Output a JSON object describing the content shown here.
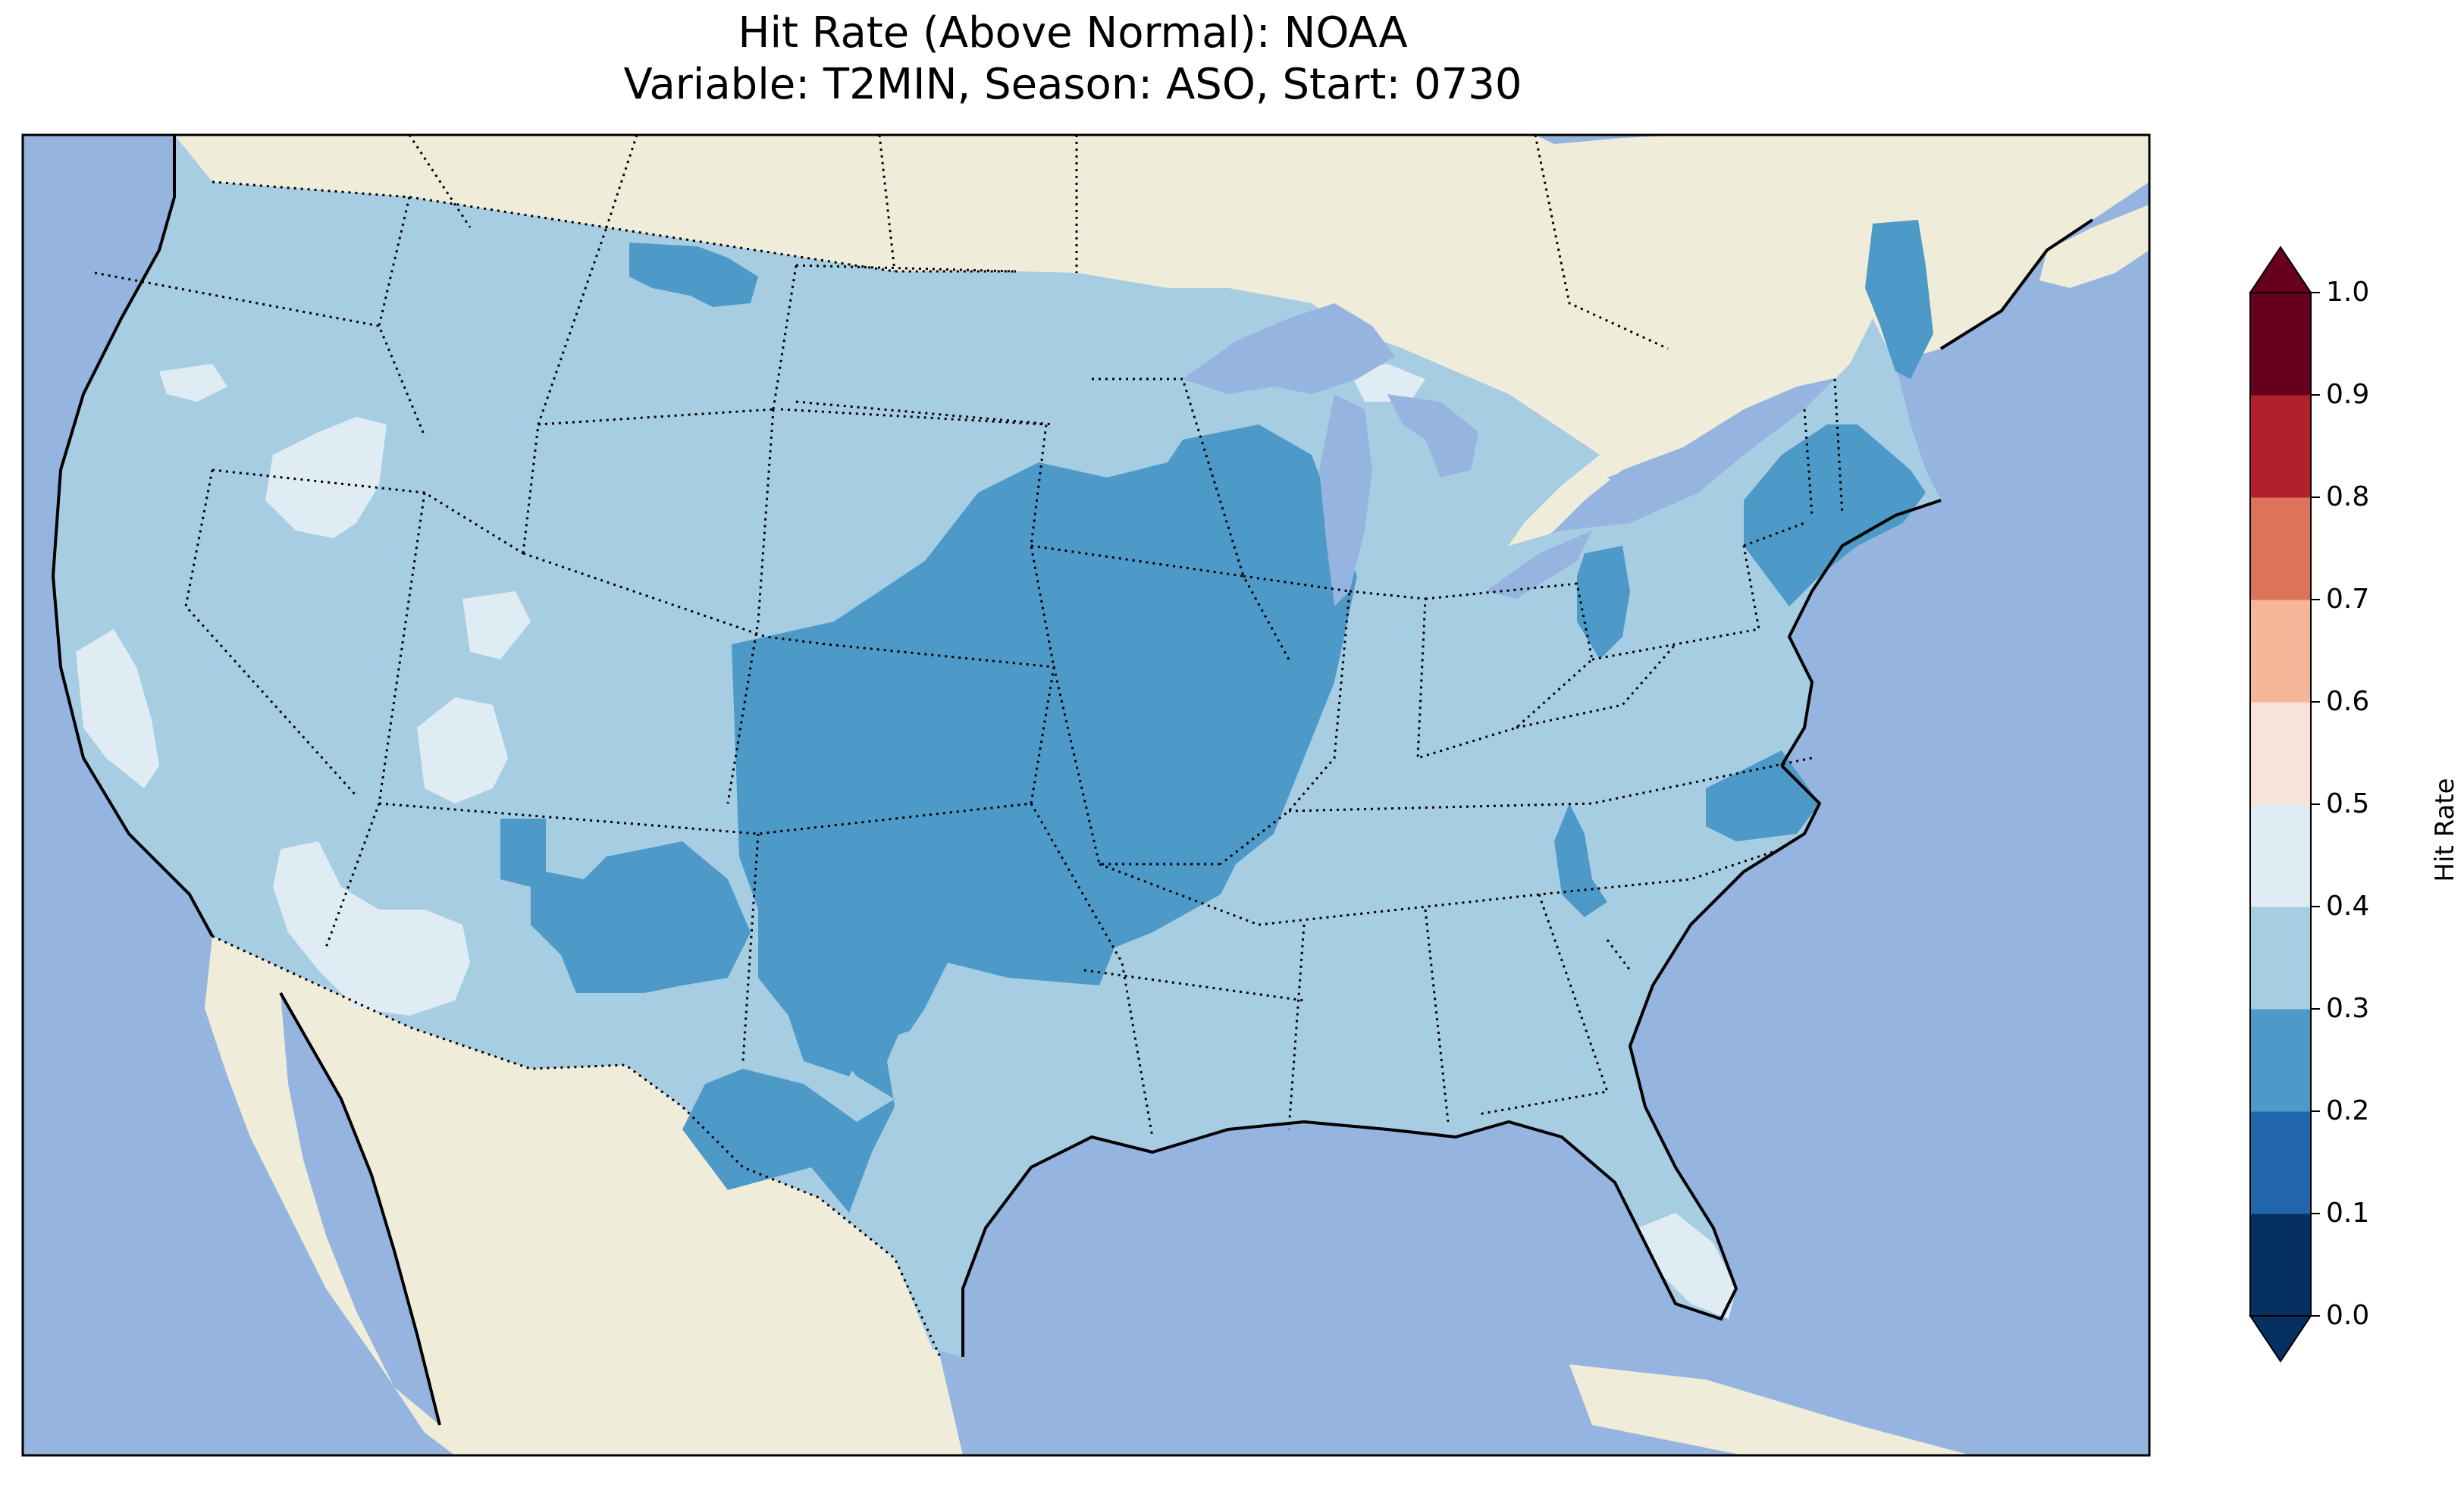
{
  "title": {
    "line1": "Hit Rate (Above Normal): NOAA",
    "line2": "Variable: T2MIN, Season: ASO, Start: 0730"
  },
  "colors": {
    "ocean": "#96b4e0",
    "land": "#efedda",
    "bin_0_1": "#053061",
    "bin_1_2": "#2166ac",
    "bin_2_3": "#4d99c8",
    "bin_3_4": "#a7cde3",
    "bin_4_5": "#e0ecf3",
    "bin_5_6": "#f8e3d8",
    "bin_6_7": "#f4b598",
    "bin_7_8": "#dd7459",
    "bin_8_9": "#b3202d",
    "bin_9_10": "#67001f"
  },
  "colorbar": {
    "label": "Hit Rate",
    "ticks": [
      "0.0",
      "0.1",
      "0.2",
      "0.3",
      "0.4",
      "0.5",
      "0.6",
      "0.7",
      "0.8",
      "0.9",
      "1.0"
    ],
    "extend": "both"
  },
  "map_data": {
    "region": "Contiguous United States",
    "dominant_range": [
      0.3,
      0.4
    ],
    "regions_0_2_to_0_3": [
      "Central Plains",
      "Upper Midwest",
      "Southern Plains",
      "Arizona/New Mexico",
      "Northeast",
      "Northern Maine"
    ],
    "regions_0_4_to_0_5": [
      "California coast",
      "Southern California/Nevada",
      "Great Basin",
      "Southern Florida"
    ]
  }
}
